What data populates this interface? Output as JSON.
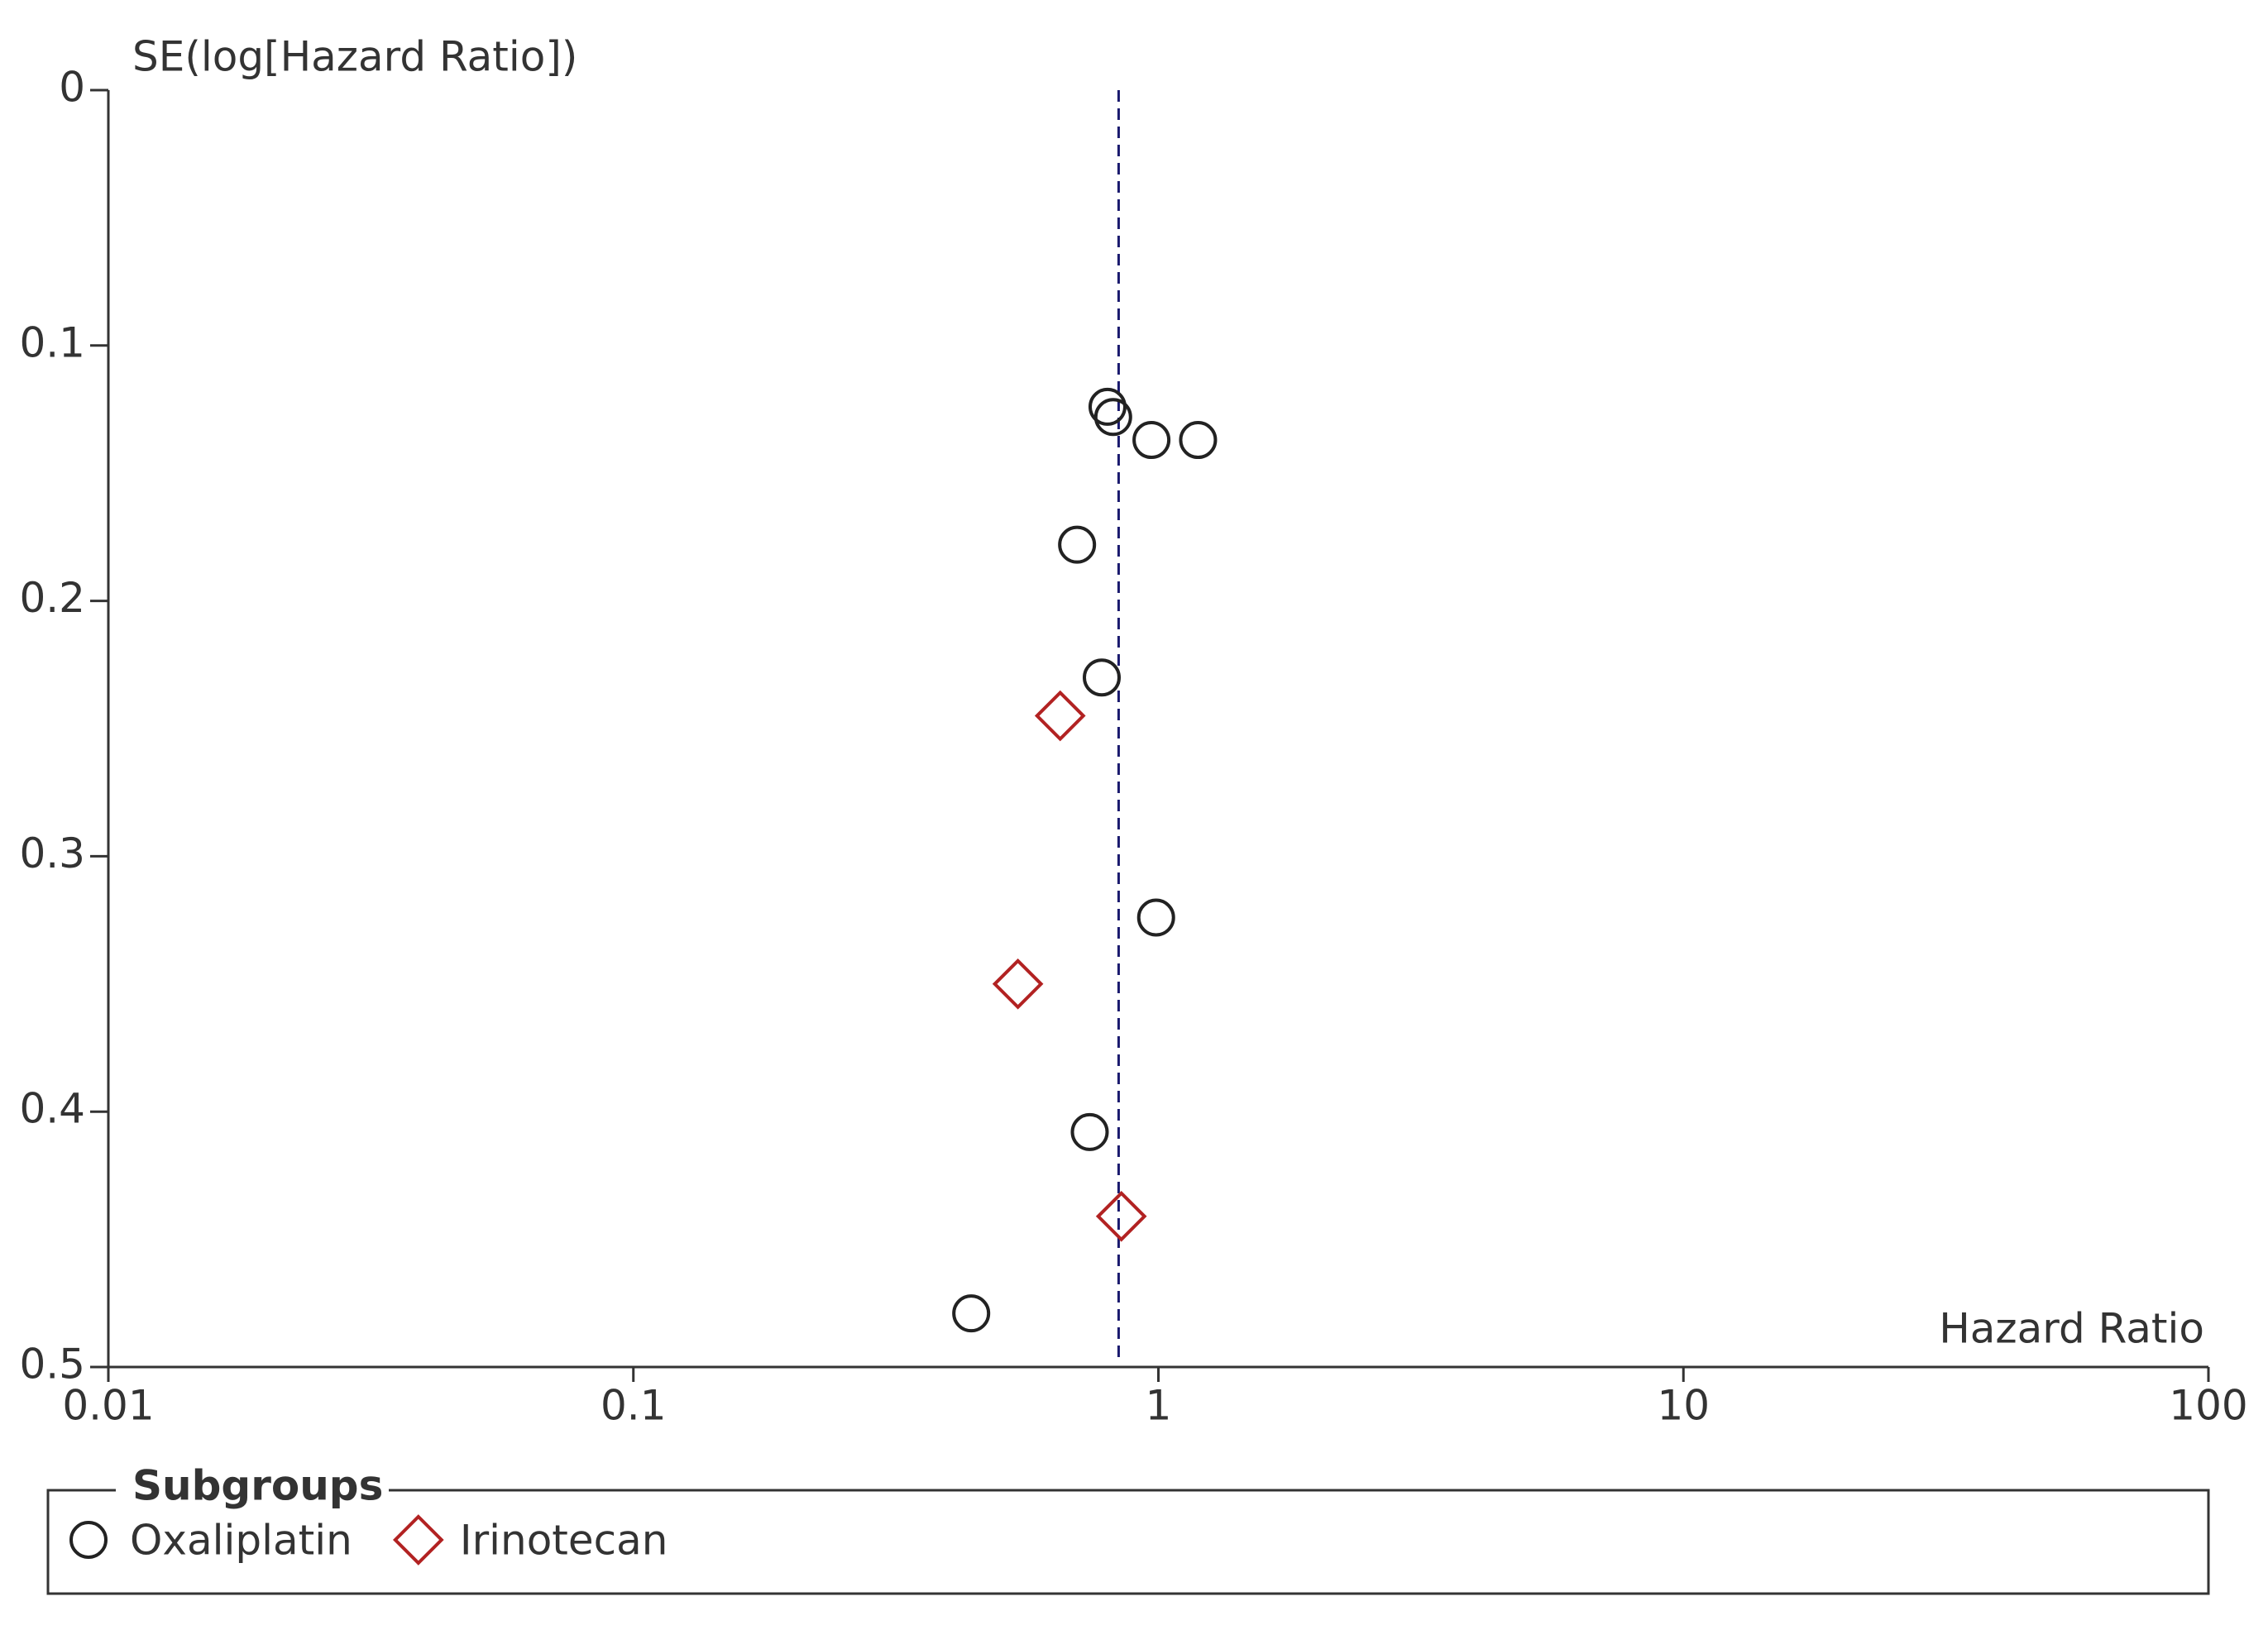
{
  "chart_data": {
    "type": "scatter",
    "y_label": "SE(log[Hazard Ratio])",
    "x_label": "Hazard Ratio",
    "legend_title": "Subgroups",
    "legend_position": "bottom",
    "x_log": true,
    "y_inverted": true,
    "xlim": [
      0.01,
      100
    ],
    "xticks": [
      0.01,
      0.1,
      1,
      10,
      100
    ],
    "ylim": [
      0,
      0.5
    ],
    "yticks": [
      0,
      0.1,
      0.2,
      0.3,
      0.4,
      0.5
    ],
    "reference_line": 0.84,
    "reference_color": "#1a1a6e",
    "series": [
      {
        "name": "Oxaliplatin",
        "color": "#222222",
        "marker": "circle",
        "x": [
          0.8,
          0.82,
          0.97,
          1.19,
          0.7,
          0.78,
          0.99,
          0.74,
          0.44
        ],
        "values": [
          0.124,
          0.128,
          0.137,
          0.137,
          0.178,
          0.23,
          0.324,
          0.408,
          0.479
        ]
      },
      {
        "name": "Irinotecan",
        "color": "#b22222",
        "marker": "diamond",
        "x": [
          0.65,
          0.54,
          0.85
        ],
        "values": [
          0.245,
          0.35,
          0.441
        ]
      }
    ]
  }
}
